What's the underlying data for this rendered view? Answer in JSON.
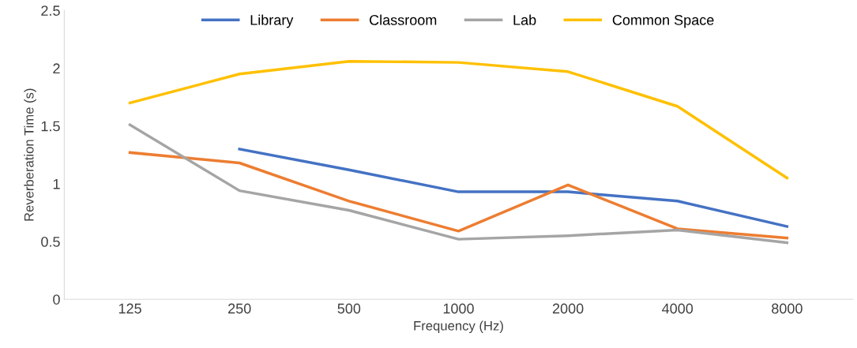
{
  "chart_data": {
    "type": "line",
    "xlabel": "Frequency (Hz)",
    "ylabel": "Reverberation Time (s)",
    "categories": [
      "125",
      "250",
      "500",
      "1000",
      "2000",
      "4000",
      "8000"
    ],
    "ylim": [
      0,
      2.5
    ],
    "yticks": [
      0,
      0.5,
      1,
      1.5,
      2,
      2.5
    ],
    "grid": false,
    "legend": "top",
    "marker": "none",
    "line_style": "solid",
    "series": [
      {
        "name": "Library",
        "color": "#4472c4",
        "values": [
          null,
          1.3,
          1.12,
          0.93,
          0.93,
          0.85,
          0.63
        ]
      },
      {
        "name": "Classroom",
        "color": "#ed7d31",
        "values": [
          1.27,
          1.18,
          0.85,
          0.59,
          0.99,
          0.61,
          0.53
        ]
      },
      {
        "name": "Lab",
        "color": "#a5a5a5",
        "values": [
          1.51,
          0.94,
          0.77,
          0.52,
          0.55,
          0.6,
          0.49
        ]
      },
      {
        "name": "Common Space",
        "color": "#ffc000",
        "values": [
          1.7,
          1.95,
          2.06,
          2.05,
          1.97,
          1.67,
          1.05
        ]
      }
    ]
  }
}
